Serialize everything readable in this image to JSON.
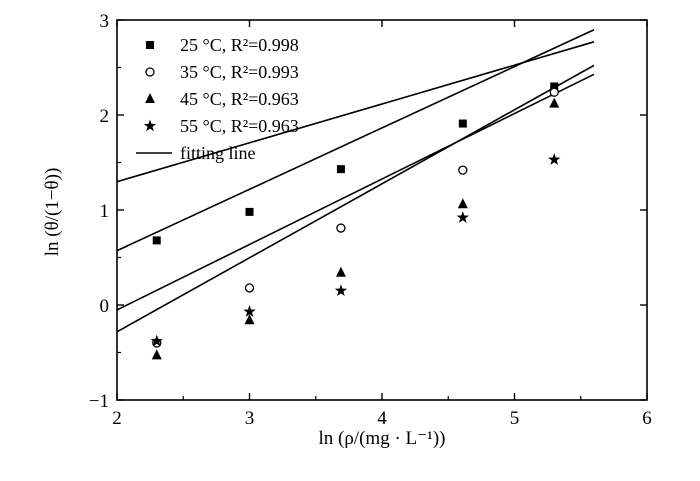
{
  "chart_data": {
    "type": "scatter",
    "title": "",
    "xlabel": "ln (ρ/(mg · L⁻¹))",
    "ylabel": "ln (θ/(1−θ))",
    "xlim": [
      2,
      6
    ],
    "ylim": [
      -1,
      3
    ],
    "xticks": [
      2,
      3,
      4,
      5,
      6
    ],
    "yticks": [
      -1,
      0,
      1,
      2,
      3
    ],
    "grid": false,
    "legend_position": "top-left",
    "x": [
      2.3,
      3.0,
      3.69,
      4.61,
      5.3
    ],
    "series": [
      {
        "name": "25 °C, R²=0.998",
        "marker": "square",
        "values": [
          0.68,
          0.98,
          1.43,
          1.91,
          2.3
        ],
        "fit": [
          0.48,
          0.409
        ]
      },
      {
        "name": "35 °C, R²=0.993",
        "marker": "circle-open",
        "values": [
          -0.4,
          0.18,
          0.81,
          1.42,
          2.24
        ],
        "fit": [
          -1.43,
          0.689
        ]
      },
      {
        "name": "45 °C, R²=0.963",
        "marker": "triangle",
        "values": [
          -0.53,
          -0.16,
          0.34,
          1.06,
          2.12
        ],
        "fit": [
          -1.84,
          0.779
        ]
      },
      {
        "name": "55 °C, R²=0.963",
        "marker": "star",
        "values": [
          -0.38,
          -0.07,
          0.15,
          0.92,
          1.53
        ],
        "fit": [
          -0.72,
          0.646
        ]
      }
    ],
    "fit_legend": "fitting line",
    "fit_x_range": [
      2,
      5.6
    ]
  }
}
